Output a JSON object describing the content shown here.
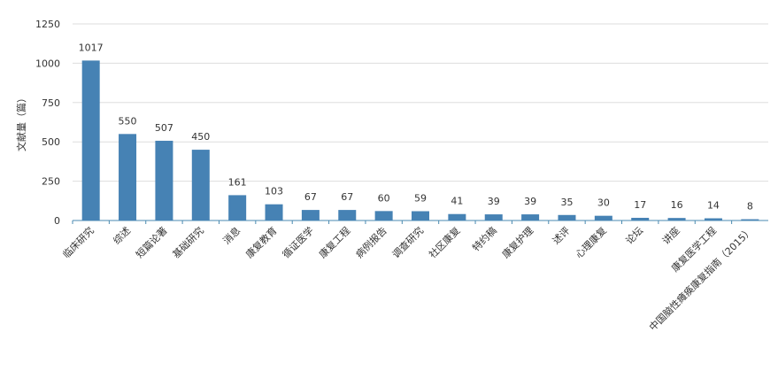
{
  "chart_data": {
    "type": "bar",
    "y_label": "文献量（篇）",
    "categories": [
      "临床研究",
      "综述",
      "短篇论著",
      "基础研究",
      "消息",
      "康复教育",
      "循证医学",
      "康复工程",
      "病例报告",
      "调查研究",
      "社区康复",
      "特约稿",
      "康复护理",
      "述评",
      "心理康复",
      "论坛",
      "讲座",
      "康复医学工程",
      "中国脑性瘫痪康复指南（2015）"
    ],
    "values": [
      1017,
      550,
      507,
      450,
      161,
      103,
      67,
      67,
      60,
      59,
      41,
      39,
      39,
      35,
      30,
      17,
      16,
      14,
      8
    ],
    "color": "#4682b4",
    "ylim": [
      0,
      1250
    ],
    "yticks": [
      0,
      250,
      500,
      750,
      1000,
      1250
    ],
    "grid": true
  }
}
